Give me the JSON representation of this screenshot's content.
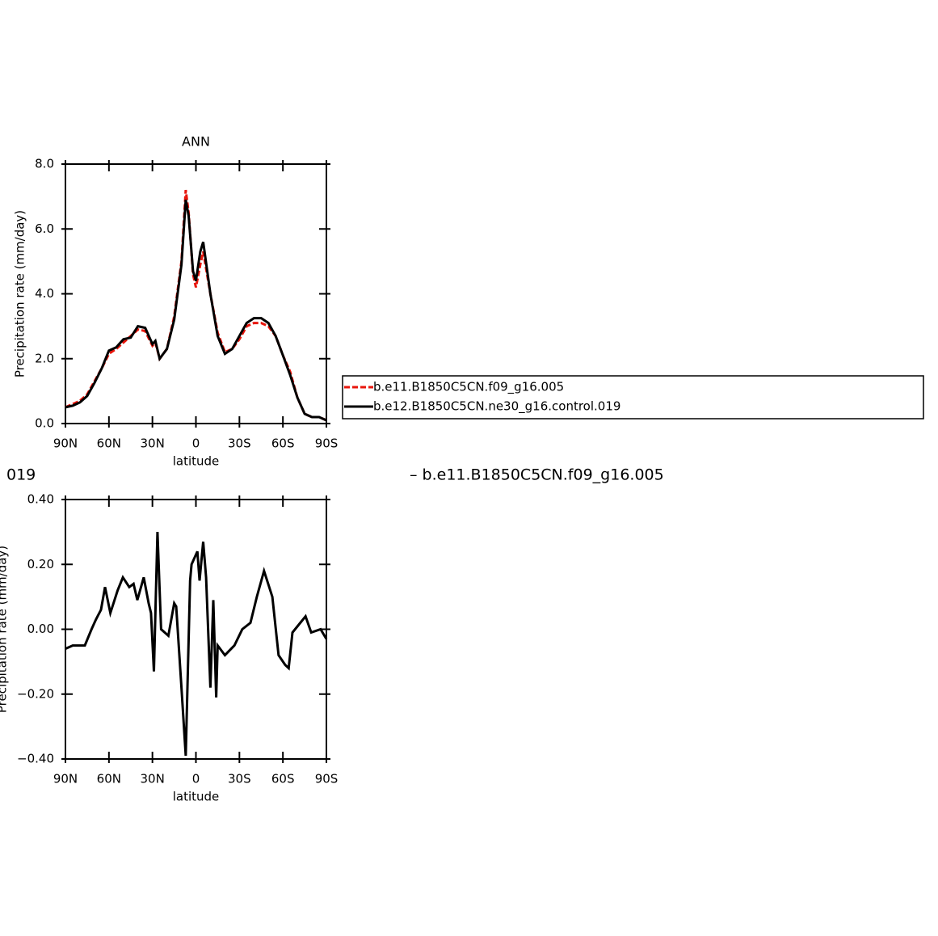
{
  "chart_data": [
    {
      "type": "line",
      "title": "ANN",
      "x_label": "latitude",
      "y_label": "Precipitation rate (mm/day)",
      "x": [
        90,
        85,
        80,
        75,
        70,
        65,
        60,
        55,
        50,
        45,
        40,
        35,
        30,
        28,
        25,
        20,
        15,
        10,
        7,
        5,
        2,
        0,
        -3,
        -5,
        -10,
        -15,
        -20,
        -25,
        -30,
        -35,
        -40,
        -45,
        -50,
        -55,
        -60,
        -65,
        -70,
        -75,
        -80,
        -85,
        -90
      ],
      "series": [
        {
          "name": "b.e11.B1850C5CN.f09_g16.005",
          "color": "#e8160c",
          "dash": true,
          "values": [
            0.5,
            0.6,
            0.7,
            0.9,
            1.3,
            1.7,
            2.15,
            2.3,
            2.5,
            2.7,
            2.9,
            2.85,
            2.4,
            2.5,
            2.0,
            2.3,
            3.3,
            5.0,
            7.2,
            6.5,
            4.6,
            4.2,
            4.9,
            5.3,
            4.0,
            2.8,
            2.2,
            2.3,
            2.6,
            3.0,
            3.1,
            3.1,
            3.0,
            2.7,
            2.1,
            1.6,
            0.8,
            0.3,
            0.2,
            0.2,
            0.1
          ]
        },
        {
          "name": "b.e12.B1850C5CN.ne30_g16.control.019",
          "color": "#000000",
          "dash": false,
          "values": [
            0.5,
            0.55,
            0.65,
            0.85,
            1.25,
            1.7,
            2.25,
            2.35,
            2.6,
            2.65,
            3.0,
            2.95,
            2.45,
            2.55,
            2.0,
            2.3,
            3.2,
            4.9,
            6.9,
            6.4,
            4.7,
            4.4,
            5.3,
            5.6,
            4.0,
            2.7,
            2.15,
            2.3,
            2.7,
            3.1,
            3.25,
            3.25,
            3.1,
            2.7,
            2.1,
            1.5,
            0.8,
            0.3,
            0.2,
            0.2,
            0.1
          ]
        }
      ],
      "xlim": [
        90,
        -90
      ],
      "xticks": [
        {
          "value": 90,
          "label": "90N"
        },
        {
          "value": 60,
          "label": "60N"
        },
        {
          "value": 30,
          "label": "30N"
        },
        0,
        {
          "value": -30,
          "label": "30S"
        },
        {
          "value": -60,
          "label": "60S"
        },
        {
          "value": -90,
          "label": "90S"
        }
      ],
      "ylim": [
        0,
        8
      ],
      "yticks": [
        {
          "value": 0,
          "label": "0.0"
        },
        {
          "value": 2,
          "label": "2.0"
        },
        {
          "value": 4,
          "label": "4.0"
        },
        {
          "value": 6,
          "label": "6.0"
        },
        {
          "value": 8,
          "label": "8.0"
        }
      ],
      "legend": "right"
    },
    {
      "type": "line",
      "x_label": "latitude",
      "y_label": "Precipitation rate (mm/day)",
      "annotations": [
        "019",
        "– b.e11.B1850C5CN.f09_g16.005"
      ],
      "x": [
        90,
        85,
        80,
        76.6,
        72,
        69,
        65.5,
        62.7,
        59,
        54,
        50.4,
        46,
        43,
        40.4,
        36,
        32.6,
        31,
        29,
        26.5,
        24,
        19,
        15,
        13.6,
        10,
        7,
        4,
        3,
        -1,
        -2.5,
        -5,
        -7,
        -10,
        -12,
        -14,
        -15,
        -20,
        -26.5,
        -32,
        -37.6,
        -42,
        -47,
        -52.7,
        -57,
        -61.6,
        -64,
        -66.6,
        -72,
        -75.6,
        -79.5,
        -86,
        -90
      ],
      "series": [
        {
          "color": "#000000",
          "values": [
            -0.06,
            -0.05,
            -0.05,
            -0.05,
            0.0,
            0.03,
            0.06,
            0.13,
            0.05,
            0.12,
            0.16,
            0.13,
            0.14,
            0.09,
            0.16,
            0.08,
            0.05,
            -0.13,
            0.3,
            0.0,
            -0.02,
            0.08,
            0.07,
            -0.18,
            -0.39,
            0.15,
            0.2,
            0.24,
            0.15,
            0.27,
            0.16,
            -0.18,
            0.09,
            -0.21,
            -0.05,
            -0.08,
            -0.05,
            0.0,
            0.02,
            0.1,
            0.18,
            0.1,
            -0.08,
            -0.11,
            -0.12,
            -0.01,
            0.02,
            0.04,
            -0.01,
            0.0,
            -0.03
          ]
        }
      ],
      "xlim": [
        90,
        -90
      ],
      "xticks": [
        {
          "value": 90,
          "label": "90N"
        },
        {
          "value": 60,
          "label": "60N"
        },
        {
          "value": 30,
          "label": "30N"
        },
        0,
        {
          "value": -30,
          "label": "30S"
        },
        {
          "value": -60,
          "label": "60S"
        },
        {
          "value": -90,
          "label": "90S"
        }
      ],
      "ylim": [
        -0.4,
        0.4
      ],
      "yticks": [
        {
          "value": -0.4,
          "label": "−0.40"
        },
        {
          "value": -0.2,
          "label": "−0.20"
        },
        {
          "value": 0,
          "label": "0.00"
        },
        {
          "value": 0.2,
          "label": "0.20"
        },
        {
          "value": 0.4,
          "label": "0.40"
        }
      ]
    }
  ]
}
